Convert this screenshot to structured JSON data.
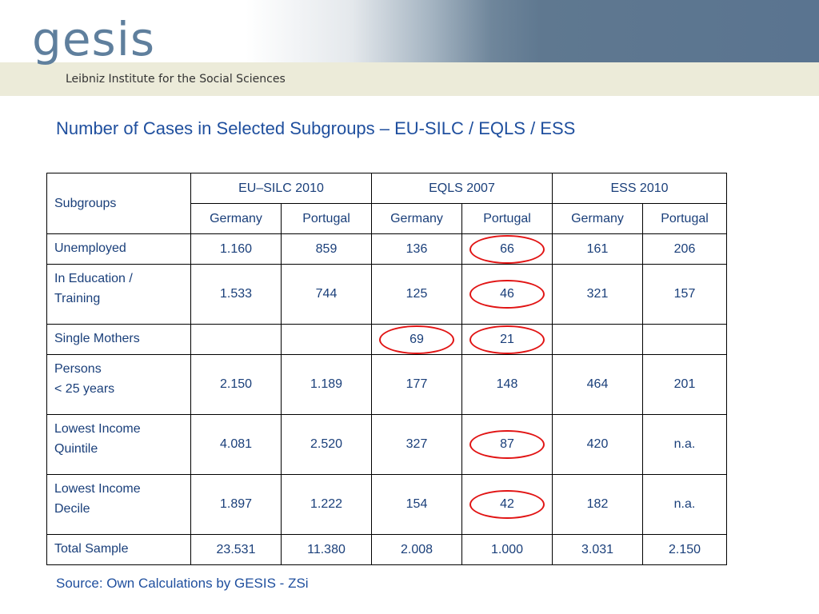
{
  "header": {
    "logo_text": "gesis",
    "tagline": "Leibniz Institute for the Social Sciences"
  },
  "slide": {
    "title": "Number of Cases in Selected Subgroups – EU-SILC / EQLS / ESS",
    "source": "Source: Own Calculations by GESIS - ZSi"
  },
  "table": {
    "corner_label": "Subgroups",
    "surveys": [
      "EU–SILC 2010",
      "EQLS 2007",
      "ESS 2010"
    ],
    "countries": [
      "Germany",
      "Portugal",
      "Germany",
      "Portugal",
      "Germany",
      "Portugal"
    ],
    "rows": [
      {
        "label": [
          "Unemployed"
        ],
        "values": [
          "1.160",
          "859",
          "136",
          "66",
          "161",
          "206"
        ],
        "circled": [
          false,
          false,
          false,
          true,
          false,
          false
        ]
      },
      {
        "label": [
          "In Education /",
          "Training"
        ],
        "values": [
          "1.533",
          "744",
          "125",
          "46",
          "321",
          "157"
        ],
        "circled": [
          false,
          false,
          false,
          true,
          false,
          false
        ]
      },
      {
        "label": [
          "Single Mothers"
        ],
        "values": [
          "",
          "",
          "69",
          "21",
          "",
          ""
        ],
        "circled": [
          false,
          false,
          true,
          true,
          false,
          false
        ]
      },
      {
        "label": [
          "Persons",
          "< 25 years"
        ],
        "values": [
          "2.150",
          "1.189",
          "177",
          "148",
          "464",
          "201"
        ],
        "circled": [
          false,
          false,
          false,
          false,
          false,
          false
        ]
      },
      {
        "label": [
          "Lowest Income",
          "Quintile"
        ],
        "values": [
          "4.081",
          "2.520",
          "327",
          "87",
          "420",
          "n.a."
        ],
        "circled": [
          false,
          false,
          false,
          true,
          false,
          false
        ]
      },
      {
        "label": [
          "Lowest Income",
          "Decile"
        ],
        "values": [
          "1.897",
          "1.222",
          "154",
          "42",
          "182",
          "n.a."
        ],
        "circled": [
          false,
          false,
          false,
          true,
          false,
          false
        ]
      },
      {
        "label": [
          "Total Sample"
        ],
        "values": [
          "23.531",
          "11.380",
          "2.008",
          "1.000",
          "3.031",
          "2.150"
        ],
        "circled": [
          false,
          false,
          false,
          false,
          false,
          false
        ]
      }
    ]
  },
  "colors": {
    "title_blue": "#1f4f9e",
    "logo_blue": "#5f7f9d",
    "header_band": "#ecebd9",
    "circle_red": "#e11414"
  }
}
